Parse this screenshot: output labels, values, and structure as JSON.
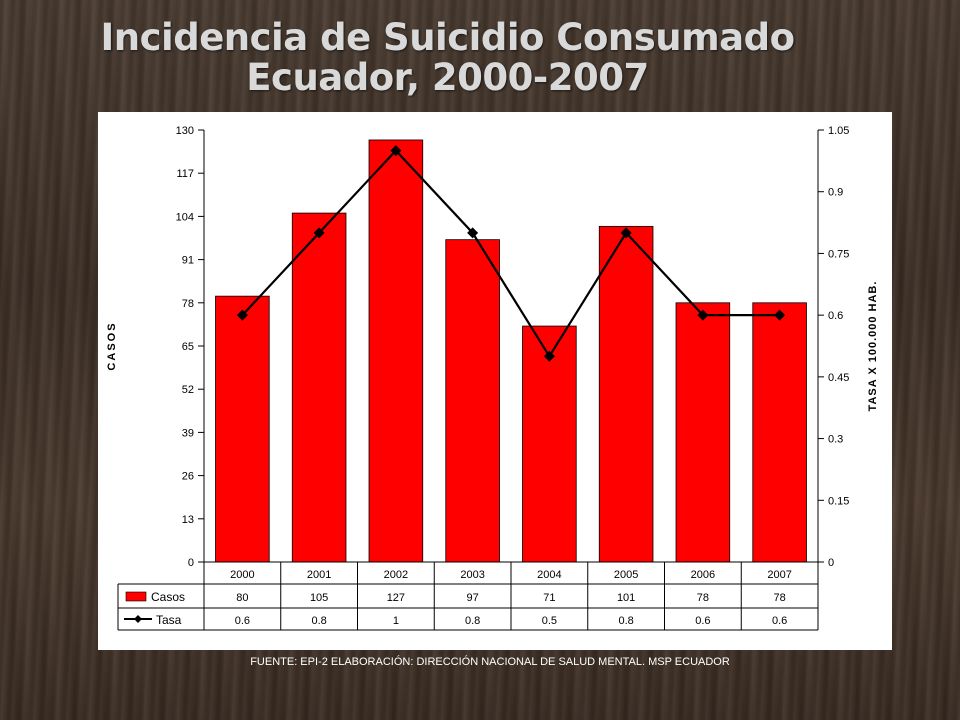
{
  "title_line1": "Incidencia de Suicidio Consumado",
  "title_line2": "Ecuador, 2000-2007",
  "footer": "FUENTE:  EPI-2  ELABORACIÓN: DIRECCIÓN NACIONAL DE SALUD MENTAL. MSP  ECUADOR",
  "colors": {
    "bar": "#ff0000",
    "line": "#000000"
  },
  "chart_data": {
    "type": "bar",
    "categories": [
      "2000",
      "2001",
      "2002",
      "2003",
      "2004",
      "2005",
      "2006",
      "2007"
    ],
    "series": [
      {
        "name": "Casos",
        "type": "bar",
        "axis": "left",
        "values": [
          80,
          105,
          127,
          97,
          71,
          101,
          78,
          78
        ],
        "labels": [
          "80",
          "105",
          "127",
          "97",
          "71",
          "101",
          "78",
          "78"
        ]
      },
      {
        "name": "Tasa",
        "type": "line",
        "axis": "right",
        "values": [
          0.6,
          0.8,
          1.0,
          0.8,
          0.5,
          0.8,
          0.6,
          0.6
        ],
        "labels": [
          "0.6",
          "0.8",
          "1",
          "0.8",
          "0.5",
          "0.8",
          "0.6",
          "0.6"
        ]
      }
    ],
    "ylabel": "CASOS",
    "y2label": "TASA X 100.000 HAB.",
    "ylim": [
      0,
      130
    ],
    "y2lim": [
      0,
      1.05
    ],
    "yticks": [
      "0",
      "13",
      "26",
      "39",
      "52",
      "65",
      "78",
      "91",
      "104",
      "117",
      "130"
    ],
    "y2ticks": [
      "0",
      "0.15",
      "0.3",
      "0.45",
      "0.6",
      "0.75",
      "0.9",
      "1.05"
    ],
    "grid": false,
    "legend": "data-table"
  }
}
